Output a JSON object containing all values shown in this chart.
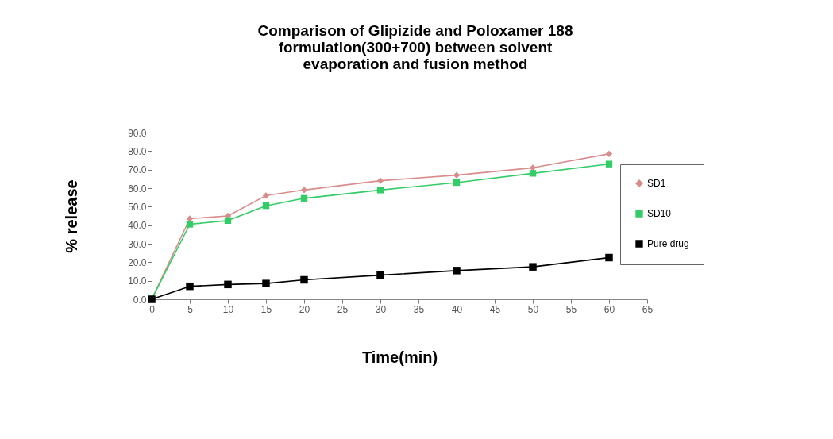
{
  "chart_data": {
    "type": "line",
    "title": "Comparison of Glipizide and Poloxamer 188 formulation(300+700) between solvent evaporation and fusion method",
    "xlabel": "Time(min)",
    "ylabel": "% release",
    "x": [
      0,
      5,
      10,
      15,
      20,
      30,
      40,
      50,
      60
    ],
    "series": [
      {
        "name": "SD1",
        "color": "#d98c8c",
        "marker": "diamond",
        "values": [
          0,
          43.5,
          45,
          56,
          59,
          64,
          67,
          71,
          78.5
        ]
      },
      {
        "name": "SD10",
        "color": "#33cc66",
        "marker": "square",
        "values": [
          0,
          40.5,
          42.5,
          50.5,
          54.5,
          59,
          63,
          68,
          73
        ]
      },
      {
        "name": "Pure drug",
        "color": "#000000",
        "marker": "square",
        "values": [
          0,
          7,
          8,
          8.5,
          10.5,
          13,
          15.5,
          17.5,
          22.5
        ]
      }
    ],
    "xlim": [
      0,
      65
    ],
    "xticks": [
      0,
      5,
      10,
      15,
      20,
      25,
      30,
      35,
      40,
      45,
      50,
      55,
      60,
      65
    ],
    "ylim": [
      0,
      90
    ],
    "yticks": [
      {
        "value": 0,
        "label": "0.0"
      },
      {
        "value": 10,
        "label": "10.0"
      },
      {
        "value": 20,
        "label": "20.0"
      },
      {
        "value": 30,
        "label": "30.0"
      },
      {
        "value": 40,
        "label": "40.0"
      },
      {
        "value": 50,
        "label": "50.0"
      },
      {
        "value": 60,
        "label": "60.0"
      },
      {
        "value": 70,
        "label": "70.0"
      },
      {
        "value": 80,
        "label": "80.0"
      },
      {
        "value": 90,
        "label": "90.0"
      }
    ],
    "grid": false,
    "legend": "right",
    "line_style": "solid"
  }
}
